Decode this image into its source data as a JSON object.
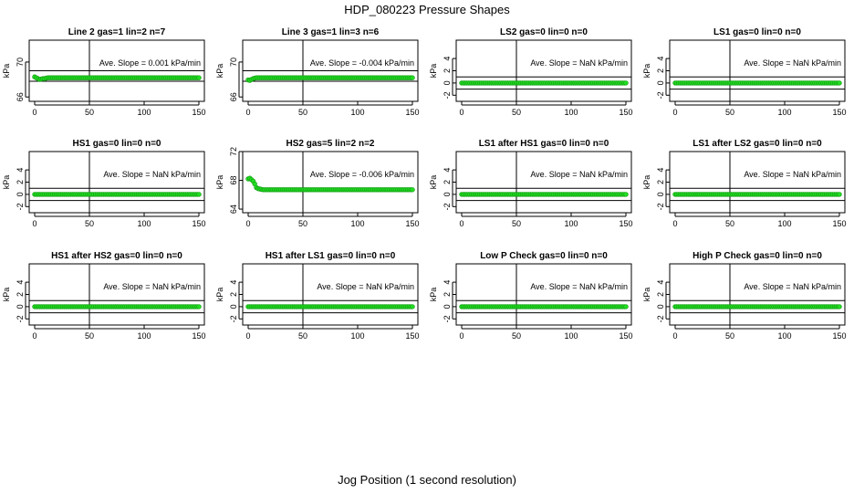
{
  "title": "HDP_080223  Pressure Shapes",
  "x_axis_label": "Jog Position (1 second resolution)",
  "colors": {
    "points": "#22dd22",
    "point_edge": "#119911",
    "lines": "#000000"
  },
  "chart_data": [
    {
      "type": "scatter",
      "title": "Line 2 gas=1 lin=2 n=7",
      "ylabel": "kPa",
      "ylim": [
        65.5,
        72.5
      ],
      "yticks": [
        66,
        70
      ],
      "xlim": [
        0,
        150
      ],
      "xticks": [
        0,
        50,
        100,
        150
      ],
      "hlines": [
        67.8,
        69.0
      ],
      "vline": 50,
      "slope_label": "Ave. Slope =",
      "slope_value": "0.001",
      "slope_unit": "kPa/min",
      "series": {
        "x_start": 0,
        "x_end": 150,
        "x_step": 1.5,
        "baseline": 68.2,
        "initial": [
          68.3,
          68.2,
          68.1,
          68.0,
          68.05,
          68.1,
          68.1,
          68.15
        ]
      }
    },
    {
      "type": "scatter",
      "title": "Line 3 gas=1 lin=3 n=6",
      "ylabel": "kPa",
      "ylim": [
        65.5,
        72.5
      ],
      "yticks": [
        66,
        70
      ],
      "xlim": [
        0,
        150
      ],
      "xticks": [
        0,
        50,
        100,
        150
      ],
      "hlines": [
        67.8,
        69.0
      ],
      "vline": 50,
      "slope_label": "Ave. Slope =",
      "slope_value": "-0.004",
      "slope_unit": "kPa/min",
      "series": {
        "x_start": 0,
        "x_end": 150,
        "x_step": 1.5,
        "baseline": 68.2,
        "initial": [
          67.95,
          67.9,
          68.0,
          68.1,
          68.15
        ]
      }
    },
    {
      "type": "scatter",
      "title": "LS2 gas=0 lin=0 n=0",
      "ylabel": "kPa",
      "ylim": [
        -3,
        7
      ],
      "yticks": [
        -2,
        0,
        2,
        4
      ],
      "xlim": [
        0,
        150
      ],
      "xticks": [
        0,
        50,
        100,
        150
      ],
      "hlines": [
        -1,
        1
      ],
      "vline": 50,
      "slope_label": "Ave. Slope =",
      "slope_value": "NaN",
      "slope_unit": "kPa/min",
      "series": {
        "x_start": 0,
        "x_end": 150,
        "x_step": 1.5,
        "baseline": 0,
        "initial": []
      }
    },
    {
      "type": "scatter",
      "title": "LS1 gas=0 lin=0 n=0",
      "ylabel": "kPa",
      "ylim": [
        -3,
        7
      ],
      "yticks": [
        -2,
        0,
        2,
        4
      ],
      "xlim": [
        0,
        150
      ],
      "xticks": [
        0,
        50,
        100,
        150
      ],
      "hlines": [
        -1,
        1
      ],
      "vline": 50,
      "slope_label": "Ave. Slope =",
      "slope_value": "NaN",
      "slope_unit": "kPa/min",
      "series": {
        "x_start": 0,
        "x_end": 150,
        "x_step": 1.5,
        "baseline": 0,
        "initial": []
      }
    },
    {
      "type": "scatter",
      "title": "HS1 gas=0 lin=0 n=0",
      "ylabel": "kPa",
      "ylim": [
        -3,
        7
      ],
      "yticks": [
        -2,
        0,
        2,
        4
      ],
      "xlim": [
        0,
        150
      ],
      "xticks": [
        0,
        50,
        100,
        150
      ],
      "hlines": [
        -1,
        1
      ],
      "vline": 50,
      "slope_label": "Ave. Slope =",
      "slope_value": "NaN",
      "slope_unit": "kPa/min",
      "series": {
        "x_start": 0,
        "x_end": 150,
        "x_step": 1.5,
        "baseline": 0,
        "initial": []
      }
    },
    {
      "type": "scatter",
      "title": "HS2 gas=5 lin=2 n=2",
      "ylabel": "kPa",
      "ylim": [
        63.5,
        72
      ],
      "yticks": [
        64,
        68,
        72
      ],
      "xlim": [
        0,
        150
      ],
      "xticks": [
        0,
        50,
        100,
        150
      ],
      "hlines": [],
      "vline": 50,
      "slope_label": "Ave. Slope =",
      "slope_value": "-0.006",
      "slope_unit": "kPa/min",
      "series": {
        "x_start": 0,
        "x_end": 150,
        "x_step": 1.5,
        "baseline": 66.7,
        "initial": [
          68.2,
          68.3,
          68.1,
          67.9,
          67.5,
          67.0,
          66.85,
          66.8,
          66.75
        ]
      }
    },
    {
      "type": "scatter",
      "title": "LS1 after HS1 gas=0 lin=0 n=0",
      "ylabel": "kPa",
      "ylim": [
        -3,
        7
      ],
      "yticks": [
        -2,
        0,
        2,
        4
      ],
      "xlim": [
        0,
        150
      ],
      "xticks": [
        0,
        50,
        100,
        150
      ],
      "hlines": [
        -1,
        1
      ],
      "vline": 50,
      "slope_label": "Ave. Slope =",
      "slope_value": "NaN",
      "slope_unit": "kPa/min",
      "series": {
        "x_start": 0,
        "x_end": 150,
        "x_step": 1.5,
        "baseline": 0,
        "initial": []
      }
    },
    {
      "type": "scatter",
      "title": "LS1 after LS2 gas=0 lin=0 n=0",
      "ylabel": "kPa",
      "ylim": [
        -3,
        7
      ],
      "yticks": [
        -2,
        0,
        2,
        4
      ],
      "xlim": [
        0,
        150
      ],
      "xticks": [
        0,
        50,
        100,
        150
      ],
      "hlines": [
        -1,
        1
      ],
      "vline": 50,
      "slope_label": "Ave. Slope =",
      "slope_value": "NaN",
      "slope_unit": "kPa/min",
      "series": {
        "x_start": 0,
        "x_end": 150,
        "x_step": 1.5,
        "baseline": 0,
        "initial": []
      }
    },
    {
      "type": "scatter",
      "title": "HS1 after HS2 gas=0 lin=0 n=0",
      "ylabel": "kPa",
      "ylim": [
        -3,
        7
      ],
      "yticks": [
        -2,
        0,
        2,
        4
      ],
      "xlim": [
        0,
        150
      ],
      "xticks": [
        0,
        50,
        100,
        150
      ],
      "hlines": [
        -1,
        1
      ],
      "vline": 50,
      "slope_label": "Ave. Slope =",
      "slope_value": "NaN",
      "slope_unit": "kPa/min",
      "series": {
        "x_start": 0,
        "x_end": 150,
        "x_step": 1.5,
        "baseline": 0,
        "initial": []
      }
    },
    {
      "type": "scatter",
      "title": "HS1 after LS1 gas=0 lin=0 n=0",
      "ylabel": "kPa",
      "ylim": [
        -3,
        7
      ],
      "yticks": [
        -2,
        0,
        2,
        4
      ],
      "xlim": [
        0,
        150
      ],
      "xticks": [
        0,
        50,
        100,
        150
      ],
      "hlines": [
        -1,
        1
      ],
      "vline": 50,
      "slope_label": "Ave. Slope =",
      "slope_value": "NaN",
      "slope_unit": "kPa/min",
      "series": {
        "x_start": 0,
        "x_end": 150,
        "x_step": 1.5,
        "baseline": 0,
        "initial": []
      }
    },
    {
      "type": "scatter",
      "title": "Low P Check gas=0 lin=0 n=0",
      "ylabel": "kPa",
      "ylim": [
        -3,
        7
      ],
      "yticks": [
        -2,
        0,
        2,
        4
      ],
      "xlim": [
        0,
        150
      ],
      "xticks": [
        0,
        50,
        100,
        150
      ],
      "hlines": [
        -1,
        1
      ],
      "vline": 50,
      "slope_label": "Ave. Slope =",
      "slope_value": "NaN",
      "slope_unit": "kPa/min",
      "series": {
        "x_start": 0,
        "x_end": 150,
        "x_step": 1.5,
        "baseline": 0,
        "initial": []
      }
    },
    {
      "type": "scatter",
      "title": "High P Check gas=0 lin=0 n=0",
      "ylabel": "kPa",
      "ylim": [
        -3,
        7
      ],
      "yticks": [
        -2,
        0,
        2,
        4
      ],
      "xlim": [
        0,
        150
      ],
      "xticks": [
        0,
        50,
        100,
        150
      ],
      "hlines": [
        -1,
        1
      ],
      "vline": 50,
      "slope_label": "Ave. Slope =",
      "slope_value": "NaN",
      "slope_unit": "kPa/min",
      "series": {
        "x_start": 0,
        "x_end": 150,
        "x_step": 1.5,
        "baseline": 0,
        "initial": []
      }
    }
  ]
}
